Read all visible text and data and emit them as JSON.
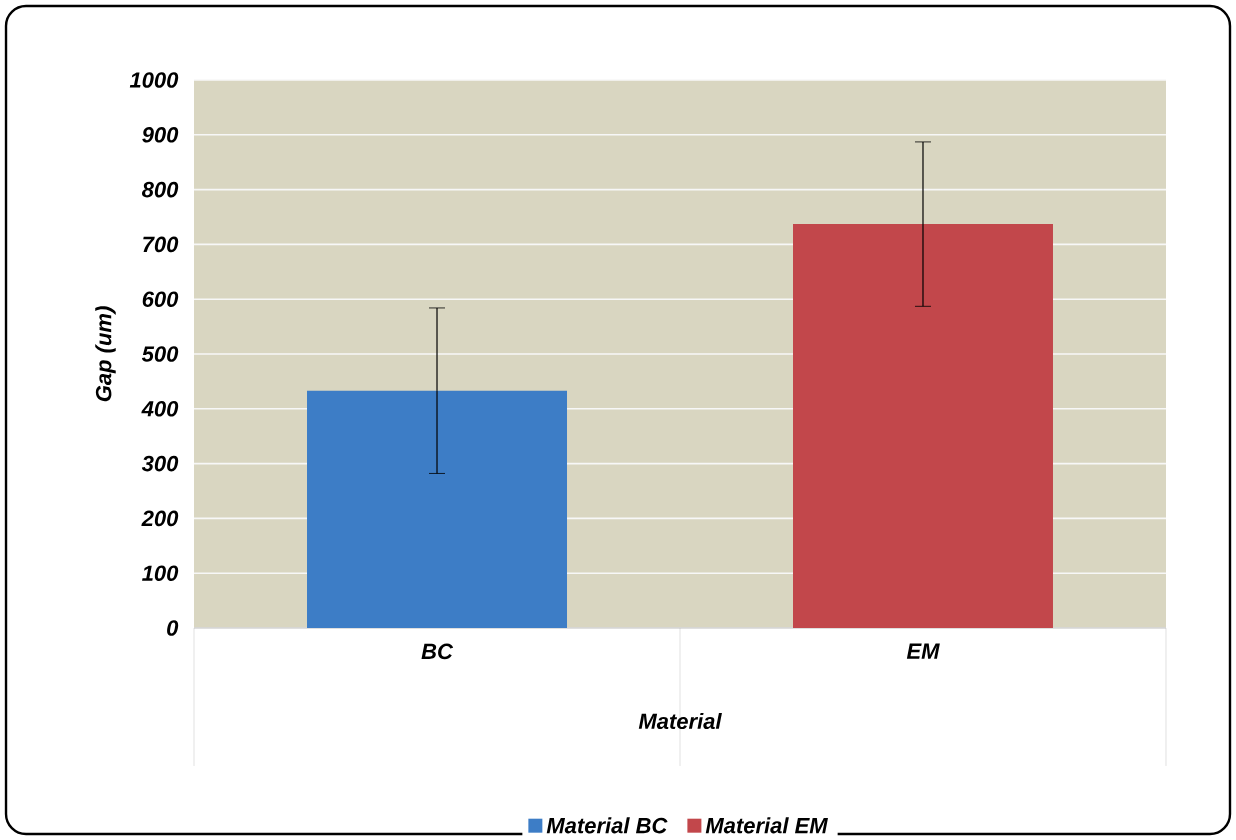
{
  "chart_data": {
    "type": "bar",
    "xlabel": "Material",
    "ylabel": "Gap (um)",
    "categories": [
      "BC",
      "EM"
    ],
    "series": [
      {
        "name": "Material BC",
        "color": "#3d7dc6",
        "values": [
          433,
          null
        ],
        "errors": [
          151,
          null
        ]
      },
      {
        "name": "Material EM",
        "color": "#c2474b",
        "values": [
          null,
          737
        ],
        "errors": [
          null,
          150
        ]
      }
    ],
    "ylim": [
      0,
      1000
    ],
    "yticks": [
      0,
      100,
      200,
      300,
      400,
      500,
      600,
      700,
      800,
      900,
      1000
    ],
    "grid": "y",
    "legend": "bottom"
  }
}
